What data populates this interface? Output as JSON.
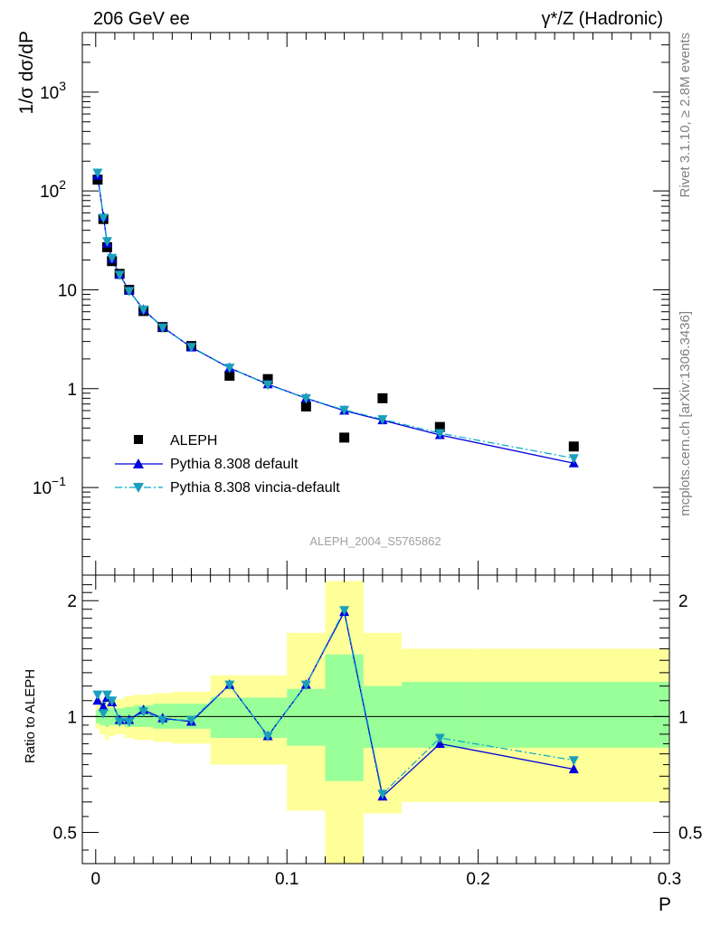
{
  "header": {
    "left": "206 GeV ee",
    "right": "γ*/Z (Hadronic)"
  },
  "side_labels": {
    "rivet": "Rivet 3.1.10, ≥ 2.8M events",
    "mcplots": "mcplots.cern.ch [arXiv:1306.3436]"
  },
  "watermark": "ALEPH_2004_S5765862",
  "chart_data": [
    {
      "id": "main",
      "type": "scatter",
      "ylabel": "1/σ  dσ/dP",
      "yscale": "log",
      "xlim": [
        -0.007,
        0.3
      ],
      "ylim": [
        0.013,
        4000
      ],
      "x_ticks": [
        "0",
        "0.1",
        "0.2",
        "0.3"
      ],
      "y_ticks": [
        {
          "value": 0.1,
          "label": "10",
          "exp": "−1"
        },
        {
          "value": 1,
          "label": "1",
          "exp": ""
        },
        {
          "value": 10,
          "label": "10",
          "exp": ""
        },
        {
          "value": 100,
          "label": "10",
          "exp": "2"
        },
        {
          "value": 1000,
          "label": "10",
          "exp": "3"
        }
      ],
      "legend_position": "bottom-left",
      "series": [
        {
          "name": "ALEPH",
          "style": "marker",
          "color": "#000000",
          "x": [
            0.001,
            0.004,
            0.006,
            0.0085,
            0.0125,
            0.0175,
            0.025,
            0.035,
            0.05,
            0.07,
            0.09,
            0.11,
            0.13,
            0.15,
            0.18,
            0.25
          ],
          "y": [
            130,
            52,
            27,
            19.5,
            14.5,
            10,
            6.1,
            4.2,
            2.7,
            1.35,
            1.25,
            0.66,
            0.32,
            0.8,
            0.41,
            0.26
          ]
        },
        {
          "name": "Pythia 8.308 default",
          "style": "line",
          "color": "#0000dd",
          "x": [
            0.001,
            0.004,
            0.006,
            0.0085,
            0.0125,
            0.0175,
            0.025,
            0.035,
            0.05,
            0.07,
            0.09,
            0.11,
            0.13,
            0.15,
            0.18,
            0.25
          ],
          "y": [
            143,
            55,
            29.5,
            20.5,
            14.3,
            9.8,
            6.3,
            4.2,
            2.62,
            1.62,
            1.11,
            0.8,
            0.6,
            0.48,
            0.34,
            0.176
          ]
        },
        {
          "name": "Pythia 8.308 vincia-default",
          "style": "dashdot",
          "color": "#00aacc",
          "x": [
            0.001,
            0.004,
            0.006,
            0.0085,
            0.0125,
            0.0175,
            0.025,
            0.035,
            0.05,
            0.07,
            0.09,
            0.11,
            0.13,
            0.15,
            0.18,
            0.25
          ],
          "y": [
            153,
            53.5,
            31,
            21,
            14.2,
            9.7,
            6.3,
            4.15,
            2.64,
            1.63,
            1.1,
            0.8,
            0.61,
            0.49,
            0.355,
            0.198
          ]
        }
      ]
    },
    {
      "id": "ratio",
      "type": "line",
      "ylabel": "Ratio to ALEPH",
      "yscale": "log",
      "xlim": [
        -0.007,
        0.3
      ],
      "ylim": [
        0.415,
        2.33
      ],
      "xlabel": "P",
      "y_ticks": [
        "0.5",
        "1",
        "2"
      ],
      "band_edges": [
        0,
        0.002,
        0.005,
        0.007,
        0.01,
        0.015,
        0.02,
        0.03,
        0.04,
        0.06,
        0.08,
        0.1,
        0.12,
        0.14,
        0.16,
        0.2,
        0.3
      ],
      "band_inner": [
        [
          0.96,
          1.04
        ],
        [
          0.95,
          1.05
        ],
        [
          0.94,
          1.06
        ],
        [
          0.95,
          1.05
        ],
        [
          0.95,
          1.05
        ],
        [
          0.94,
          1.06
        ],
        [
          0.94,
          1.07
        ],
        [
          0.93,
          1.08
        ],
        [
          0.93,
          1.08
        ],
        [
          0.88,
          1.12
        ],
        [
          0.88,
          1.12
        ],
        [
          0.84,
          1.18
        ],
        [
          0.68,
          1.45
        ],
        [
          0.83,
          1.2
        ],
        [
          0.83,
          1.23
        ],
        [
          0.83,
          1.23
        ]
      ],
      "band_outer": [
        [
          0.93,
          1.07
        ],
        [
          0.9,
          1.1
        ],
        [
          0.87,
          1.13
        ],
        [
          0.89,
          1.11
        ],
        [
          0.9,
          1.11
        ],
        [
          0.88,
          1.13
        ],
        [
          0.87,
          1.14
        ],
        [
          0.86,
          1.15
        ],
        [
          0.85,
          1.16
        ],
        [
          0.75,
          1.28
        ],
        [
          0.75,
          1.28
        ],
        [
          0.57,
          1.65
        ],
        [
          0.33,
          2.25
        ],
        [
          0.56,
          1.65
        ],
        [
          0.6,
          1.5
        ],
        [
          0.6,
          1.5
        ]
      ],
      "series": [
        {
          "name": "Pythia 8.308 default",
          "x": [
            0.001,
            0.004,
            0.006,
            0.0085,
            0.0125,
            0.0175,
            0.025,
            0.035,
            0.05,
            0.07,
            0.09,
            0.11,
            0.13,
            0.15,
            0.18,
            0.25
          ],
          "y": [
            1.1,
            1.06,
            1.12,
            1.09,
            0.98,
            0.98,
            1.04,
            0.99,
            0.97,
            1.21,
            0.89,
            1.21,
            1.87,
            0.62,
            0.85,
            0.73
          ]
        },
        {
          "name": "Pythia 8.308 vincia-default",
          "x": [
            0.001,
            0.004,
            0.006,
            0.0085,
            0.0125,
            0.0175,
            0.025,
            0.035,
            0.05,
            0.07,
            0.09,
            0.11,
            0.13,
            0.15,
            0.18,
            0.25
          ],
          "y": [
            1.14,
            1.02,
            1.14,
            1.1,
            0.97,
            0.97,
            1.03,
            0.98,
            0.98,
            1.21,
            0.89,
            1.21,
            1.89,
            0.63,
            0.88,
            0.77
          ]
        }
      ]
    }
  ]
}
